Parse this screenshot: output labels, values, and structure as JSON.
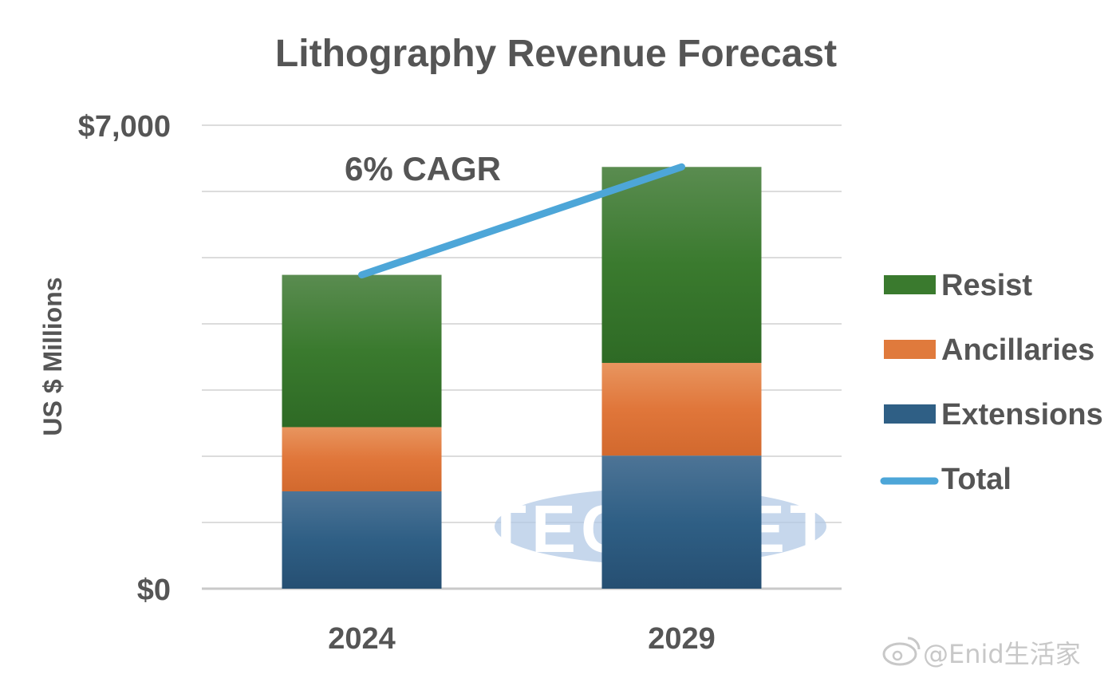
{
  "chart_data": {
    "type": "bar",
    "stacked": true,
    "title": "Lithography Revenue Forecast",
    "ylabel": "US $ Millions",
    "xlabel": "",
    "ylim": [
      0,
      7000
    ],
    "y_tick_labels": [
      "$0",
      "$7,000"
    ],
    "y_tick_values": [
      0,
      7000
    ],
    "grid": true,
    "gridline_step": 1000,
    "legend_position": "right",
    "categories": [
      "2024",
      "2029"
    ],
    "series": [
      {
        "name": "Extensions",
        "values": [
          1470,
          2010
        ],
        "color": "#2f5f85"
      },
      {
        "name": "Ancillaries",
        "values": [
          970,
          1400
        ],
        "color": "#e07a3c"
      },
      {
        "name": "Resist",
        "values": [
          2300,
          2960
        ],
        "color": "#3a7a2e"
      }
    ],
    "line_series": {
      "name": "Total",
      "values": [
        4740,
        6370
      ],
      "color": "#4da6d8"
    },
    "annotation": "6% CAGR"
  },
  "watermark": "TECHCET",
  "credit": "@Enid生活家",
  "icons": {
    "credit_logo": "weibo-icon"
  }
}
